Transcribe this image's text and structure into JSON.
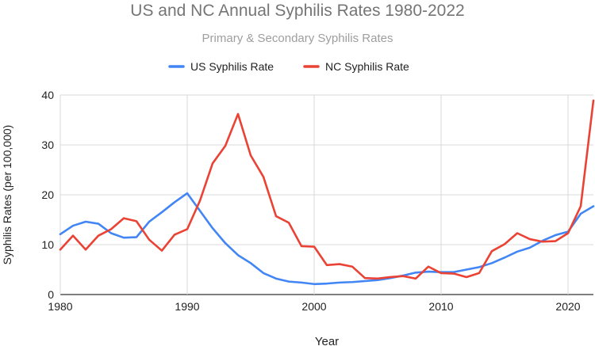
{
  "chart_data": {
    "type": "line",
    "title": "US and NC Annual Syphilis Rates 1980-2022",
    "subtitle": "Primary & Secondary Syphilis Rates",
    "xlabel": "Year",
    "ylabel": "Syphilis Rates (per 100,000)",
    "xlim": [
      1980,
      2022
    ],
    "ylim": [
      0,
      40
    ],
    "x_ticks": [
      "1980",
      "1990",
      "2000",
      "2010",
      "2020"
    ],
    "y_ticks": [
      "0",
      "10",
      "20",
      "30",
      "40"
    ],
    "grid": "horizontal",
    "legend_position": "top",
    "x": [
      1980,
      1981,
      1982,
      1983,
      1984,
      1985,
      1986,
      1987,
      1988,
      1989,
      1990,
      1991,
      1992,
      1993,
      1994,
      1995,
      1996,
      1997,
      1998,
      1999,
      2000,
      2001,
      2002,
      2003,
      2004,
      2005,
      2006,
      2007,
      2008,
      2009,
      2010,
      2011,
      2012,
      2013,
      2014,
      2015,
      2016,
      2017,
      2018,
      2019,
      2020,
      2021,
      2022
    ],
    "series": [
      {
        "name": "US Syphilis Rate",
        "color": "#4285f4",
        "values": [
          12.1,
          13.8,
          14.6,
          14.2,
          12.3,
          11.4,
          11.5,
          14.6,
          16.5,
          18.5,
          20.3,
          16.8,
          13.3,
          10.3,
          7.9,
          6.3,
          4.3,
          3.2,
          2.6,
          2.4,
          2.1,
          2.2,
          2.4,
          2.5,
          2.7,
          2.9,
          3.3,
          3.8,
          4.4,
          4.6,
          4.5,
          4.5,
          5.0,
          5.5,
          6.3,
          7.4,
          8.6,
          9.4,
          10.8,
          11.9,
          12.6,
          16.2,
          17.7
        ]
      },
      {
        "name": "NC Syphilis Rate",
        "color": "#ea4335",
        "values": [
          9.0,
          11.8,
          9.0,
          11.8,
          13.1,
          15.3,
          14.7,
          11.0,
          8.8,
          12.0,
          13.1,
          18.8,
          26.3,
          29.8,
          36.2,
          27.9,
          23.6,
          15.7,
          14.4,
          9.7,
          9.6,
          5.9,
          6.1,
          5.6,
          3.3,
          3.2,
          3.5,
          3.7,
          3.2,
          5.6,
          4.3,
          4.2,
          3.5,
          4.3,
          8.7,
          10.1,
          12.3,
          11.1,
          10.6,
          10.7,
          12.3,
          17.7,
          38.9
        ]
      }
    ]
  }
}
